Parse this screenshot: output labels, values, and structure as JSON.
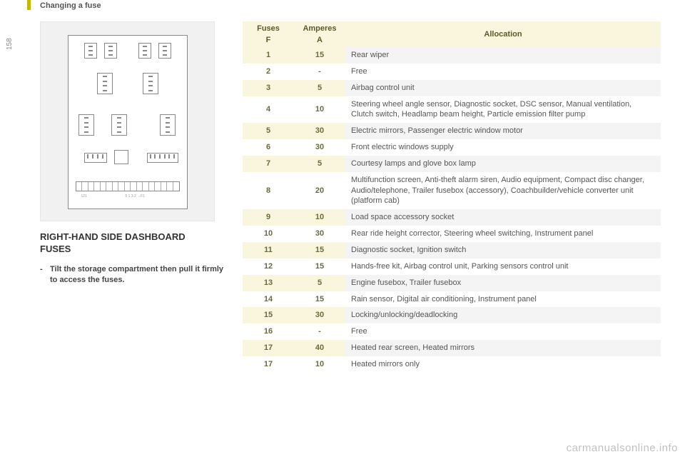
{
  "header": {
    "title": "Changing a fuse"
  },
  "page_number": "158",
  "left": {
    "section_title_line1": "RIGHT-HAND SIDE DASHBOARD",
    "section_title_line2": "FUSES",
    "instruction": "Tilt the storage compartment then pull it firmly to access the fuses."
  },
  "table": {
    "header": {
      "fuses": "Fuses",
      "f": "F",
      "amperes": "Amperes",
      "a": "A",
      "allocation": "Allocation"
    },
    "rows": [
      {
        "f": "1",
        "a": "15",
        "desc": "Rear wiper"
      },
      {
        "f": "2",
        "a": "-",
        "desc": "Free"
      },
      {
        "f": "3",
        "a": "5",
        "desc": "Airbag control unit"
      },
      {
        "f": "4",
        "a": "10",
        "desc": "Steering wheel angle sensor, Diagnostic socket, DSC sensor, Manual ventilation, Clutch switch, Headlamp beam height, Particle emission filter pump"
      },
      {
        "f": "5",
        "a": "30",
        "desc": "Electric mirrors, Passenger electric window motor"
      },
      {
        "f": "6",
        "a": "30",
        "desc": "Front electric windows supply"
      },
      {
        "f": "7",
        "a": "5",
        "desc": "Courtesy lamps and glove box lamp"
      },
      {
        "f": "8",
        "a": "20",
        "desc": "Multifunction screen, Anti-theft alarm siren, Audio equipment, Compact disc changer, Audio/telephone, Trailer fusebox (accessory), Coachbuilder/vehicle converter unit (platform cab)"
      },
      {
        "f": "9",
        "a": "10",
        "desc": "Load space accessory socket"
      },
      {
        "f": "10",
        "a": "30",
        "desc": "Rear ride height corrector, Steering wheel switching, Instrument panel"
      },
      {
        "f": "11",
        "a": "15",
        "desc": "Diagnostic socket, Ignition switch"
      },
      {
        "f": "12",
        "a": "15",
        "desc": "Hands-free kit, Airbag control unit, Parking sensors control unit"
      },
      {
        "f": "13",
        "a": "5",
        "desc": "Engine fusebox, Trailer fusebox"
      },
      {
        "f": "14",
        "a": "15",
        "desc": "Rain sensor, Digital air conditioning, Instrument panel"
      },
      {
        "f": "15",
        "a": "30",
        "desc": "Locking/unlocking/deadlocking"
      },
      {
        "f": "16",
        "a": "-",
        "desc": "Free"
      },
      {
        "f": "17",
        "a": "40",
        "desc": "Heated rear screen, Heated mirrors"
      },
      {
        "f": "17",
        "a": "10",
        "desc": "Heated mirrors only"
      }
    ]
  },
  "watermark": "carmanualsonline.info",
  "colors": {
    "accent": "#c6b800",
    "header_bg": "#f9f6dd",
    "alt_row": "#f4f4f4",
    "text": "#555555",
    "bold_text": "#6a6a3a"
  }
}
